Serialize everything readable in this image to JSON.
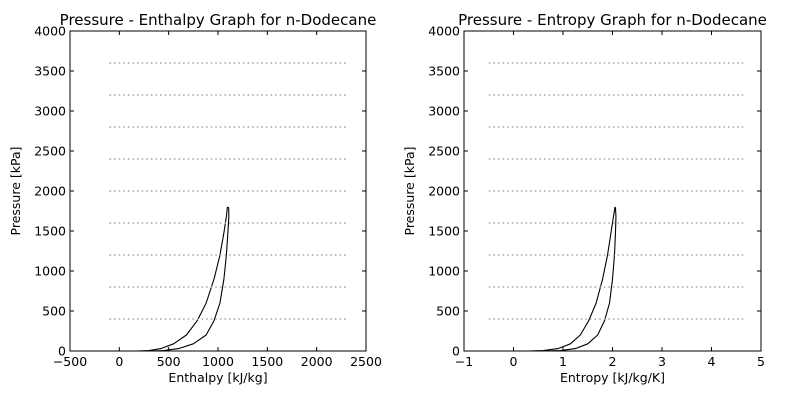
{
  "chart_data": [
    {
      "type": "line",
      "title": "Pressure - Enthalpy Graph for n-Dodecane",
      "xlabel": "Enthalpy [kJ/kg]",
      "ylabel": "Pressure [kPa]",
      "xlim": [
        -500,
        2500
      ],
      "ylim": [
        0,
        4000
      ],
      "xticks": [
        "−500",
        "0",
        "500",
        "1000",
        "1500",
        "2000",
        "2500"
      ],
      "xtick_values": [
        -500,
        0,
        500,
        1000,
        1500,
        2000,
        2500
      ],
      "yticks": [
        "0",
        "500",
        "1000",
        "1500",
        "2000",
        "2500",
        "3000",
        "3500",
        "4000"
      ],
      "ytick_values": [
        0,
        500,
        1000,
        1500,
        2000,
        2500,
        3000,
        3500,
        4000
      ],
      "grid": false,
      "series": [
        {
          "role": "saturated-liquid",
          "color": "#000000",
          "style": "solid",
          "x": [
            170,
            300,
            420,
            550,
            680,
            790,
            880,
            960,
            1020,
            1060,
            1085,
            1095
          ],
          "y": [
            0,
            5,
            30,
            90,
            200,
            380,
            600,
            900,
            1200,
            1480,
            1680,
            1800
          ]
        },
        {
          "role": "saturated-vapor",
          "color": "#000000",
          "style": "solid",
          "x": [
            300,
            450,
            600,
            750,
            880,
            960,
            1020,
            1060,
            1085,
            1100,
            1110,
            1108,
            1095
          ],
          "y": [
            0,
            5,
            30,
            90,
            200,
            380,
            600,
            900,
            1200,
            1480,
            1680,
            1790,
            1800
          ]
        },
        {
          "role": "isobar",
          "color": "#a9a9a9",
          "style": "dotted",
          "x": [
            -100,
            2300
          ],
          "y": [
            400,
            400
          ]
        },
        {
          "role": "isobar",
          "color": "#a9a9a9",
          "style": "dotted",
          "x": [
            -100,
            2300
          ],
          "y": [
            800,
            800
          ]
        },
        {
          "role": "isobar",
          "color": "#a9a9a9",
          "style": "dotted",
          "x": [
            -100,
            2300
          ],
          "y": [
            1200,
            1200
          ]
        },
        {
          "role": "isobar",
          "color": "#a9a9a9",
          "style": "dotted",
          "x": [
            -100,
            2300
          ],
          "y": [
            1600,
            1600
          ]
        },
        {
          "role": "isobar",
          "color": "#a9a9a9",
          "style": "dotted",
          "x": [
            -100,
            2300
          ],
          "y": [
            2000,
            2000
          ]
        },
        {
          "role": "isobar",
          "color": "#a9a9a9",
          "style": "dotted",
          "x": [
            -100,
            2300
          ],
          "y": [
            2400,
            2400
          ]
        },
        {
          "role": "isobar",
          "color": "#a9a9a9",
          "style": "dotted",
          "x": [
            -100,
            2300
          ],
          "y": [
            2800,
            2800
          ]
        },
        {
          "role": "isobar",
          "color": "#a9a9a9",
          "style": "dotted",
          "x": [
            -100,
            2300
          ],
          "y": [
            3200,
            3200
          ]
        },
        {
          "role": "isobar",
          "color": "#a9a9a9",
          "style": "dotted",
          "x": [
            -100,
            2300
          ],
          "y": [
            3600,
            3600
          ]
        }
      ]
    },
    {
      "type": "line",
      "title": "Pressure - Entropy Graph for n-Dodecane",
      "xlabel": "Entropy [kJ/kg/K]",
      "ylabel": "Pressure [kPa]",
      "xlim": [
        -1,
        5
      ],
      "ylim": [
        0,
        4000
      ],
      "xticks": [
        "−1",
        "0",
        "1",
        "2",
        "3",
        "4",
        "5"
      ],
      "xtick_values": [
        -1,
        0,
        1,
        2,
        3,
        4,
        5
      ],
      "yticks": [
        "0",
        "500",
        "1000",
        "1500",
        "2000",
        "2500",
        "3000",
        "3500",
        "4000"
      ],
      "ytick_values": [
        0,
        500,
        1000,
        1500,
        2000,
        2500,
        3000,
        3500,
        4000
      ],
      "grid": false,
      "series": [
        {
          "role": "saturated-liquid",
          "color": "#000000",
          "style": "solid",
          "x": [
            0.3,
            0.6,
            0.9,
            1.15,
            1.35,
            1.52,
            1.67,
            1.8,
            1.9,
            1.97,
            2.02,
            2.05
          ],
          "y": [
            0,
            5,
            30,
            90,
            200,
            380,
            600,
            900,
            1200,
            1480,
            1680,
            1800
          ]
        },
        {
          "role": "saturated-vapor",
          "color": "#000000",
          "style": "solid",
          "x": [
            0.6,
            0.95,
            1.25,
            1.5,
            1.7,
            1.84,
            1.94,
            2.0,
            2.04,
            2.06,
            2.07,
            2.06,
            2.05
          ],
          "y": [
            0,
            5,
            30,
            90,
            200,
            380,
            600,
            900,
            1200,
            1480,
            1680,
            1790,
            1800
          ]
        },
        {
          "role": "isobar",
          "color": "#a9a9a9",
          "style": "dotted",
          "x": [
            -0.5,
            4.7
          ],
          "y": [
            400,
            400
          ]
        },
        {
          "role": "isobar",
          "color": "#a9a9a9",
          "style": "dotted",
          "x": [
            -0.5,
            4.7
          ],
          "y": [
            800,
            800
          ]
        },
        {
          "role": "isobar",
          "color": "#a9a9a9",
          "style": "dotted",
          "x": [
            -0.5,
            4.7
          ],
          "y": [
            1200,
            1200
          ]
        },
        {
          "role": "isobar",
          "color": "#a9a9a9",
          "style": "dotted",
          "x": [
            -0.5,
            4.7
          ],
          "y": [
            1600,
            1600
          ]
        },
        {
          "role": "isobar",
          "color": "#a9a9a9",
          "style": "dotted",
          "x": [
            -0.5,
            4.7
          ],
          "y": [
            2000,
            2000
          ]
        },
        {
          "role": "isobar",
          "color": "#a9a9a9",
          "style": "dotted",
          "x": [
            -0.5,
            4.7
          ],
          "y": [
            2400,
            2400
          ]
        },
        {
          "role": "isobar",
          "color": "#a9a9a9",
          "style": "dotted",
          "x": [
            -0.5,
            4.7
          ],
          "y": [
            2800,
            2800
          ]
        },
        {
          "role": "isobar",
          "color": "#a9a9a9",
          "style": "dotted",
          "x": [
            -0.5,
            4.7
          ],
          "y": [
            3200,
            3200
          ]
        },
        {
          "role": "isobar",
          "color": "#a9a9a9",
          "style": "dotted",
          "x": [
            -0.5,
            4.7
          ],
          "y": [
            3600,
            3600
          ]
        }
      ]
    }
  ]
}
